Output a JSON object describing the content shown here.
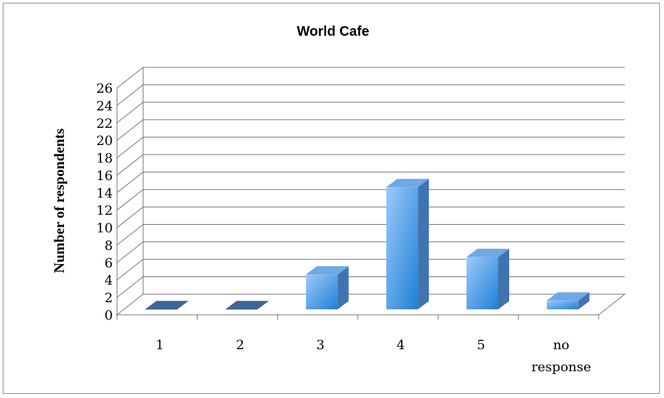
{
  "chart_data": {
    "type": "bar",
    "title": "World Cafe",
    "ylabel": "Number of respondents",
    "xlabel": "",
    "categories": [
      "1",
      "2",
      "3",
      "4",
      "5",
      "no response"
    ],
    "category_lines": [
      [
        "1"
      ],
      [
        "2"
      ],
      [
        "3"
      ],
      [
        "4"
      ],
      [
        "5"
      ],
      [
        "no",
        "response"
      ]
    ],
    "values": [
      0,
      0,
      4,
      14,
      6,
      1
    ],
    "ylim": [
      0,
      26
    ],
    "yticks": [
      "0",
      "2",
      "4",
      "6",
      "8",
      "10",
      "12",
      "14",
      "16",
      "18",
      "20",
      "22",
      "24",
      "26"
    ],
    "grid": true,
    "style": "3d-column",
    "colors": {
      "bar_front_light": "#9ccafb",
      "bar_front_dark": "#1f7fd6",
      "bar_side": "#3f74b0",
      "bar_top": "#6ea8e8",
      "bar_flat": "#3d6796"
    }
  }
}
